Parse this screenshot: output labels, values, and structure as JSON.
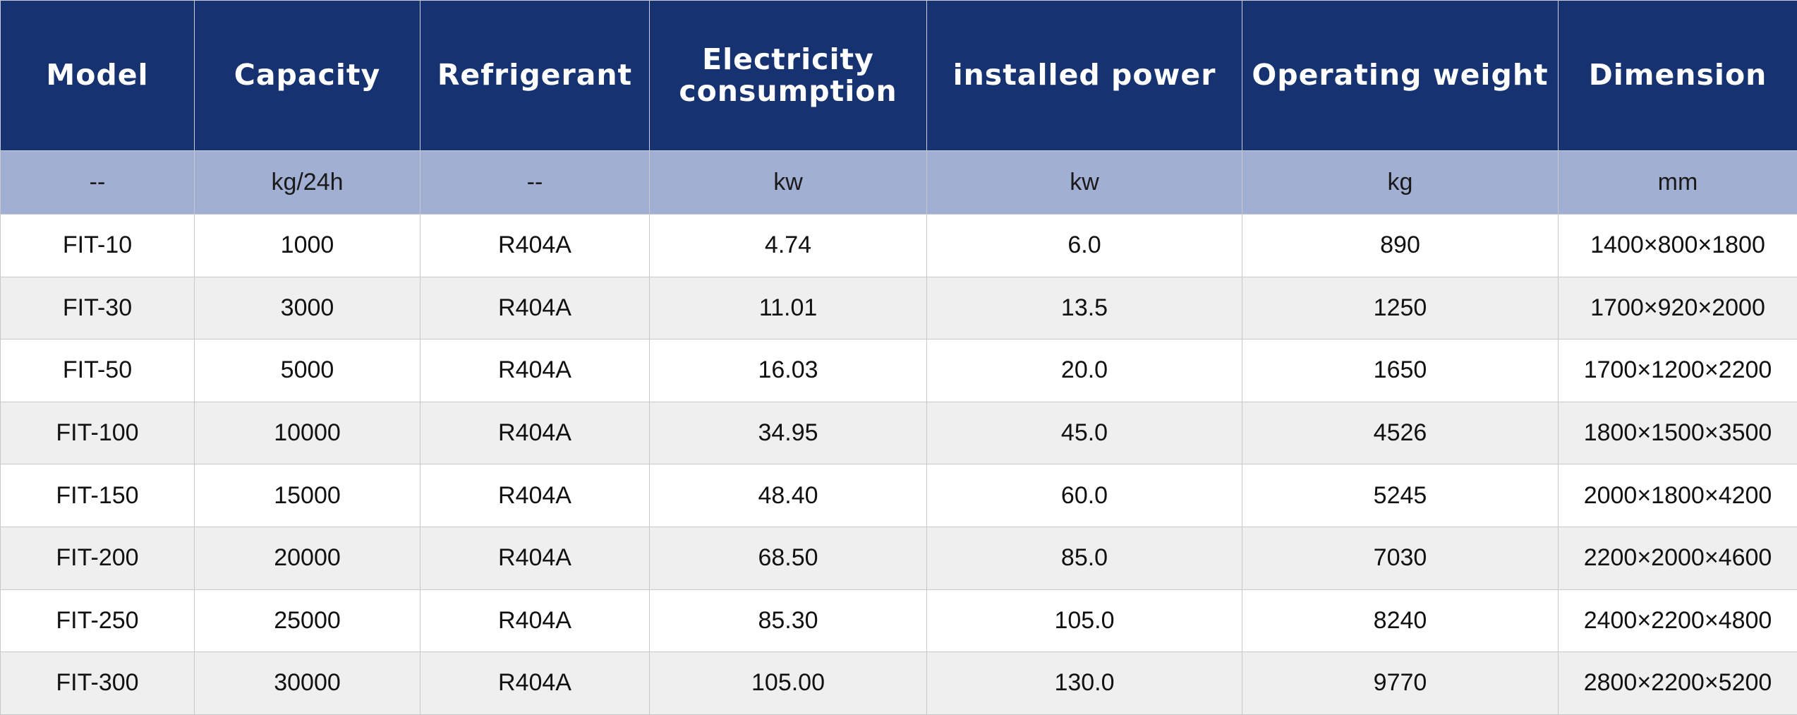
{
  "columns": [
    {
      "key": "model",
      "label": "Model",
      "unit": "--"
    },
    {
      "key": "capacity",
      "label": "Capacity",
      "unit": "kg/24h"
    },
    {
      "key": "refrigerant",
      "label": "Refrigerant",
      "unit": "--"
    },
    {
      "key": "electricity",
      "label_line1": "Electricity",
      "label_line2": "consumption",
      "unit": "kw"
    },
    {
      "key": "installed_power",
      "label": "installed power",
      "unit": "kw"
    },
    {
      "key": "operating_weight",
      "label": "Operating weight",
      "unit": "kg"
    },
    {
      "key": "dimension",
      "label": "Dimension",
      "unit": "mm"
    }
  ],
  "rows": [
    [
      "FIT-10",
      "1000",
      "R404A",
      "4.74",
      "6.0",
      "890",
      "1400×800×1800"
    ],
    [
      "FIT-30",
      "3000",
      "R404A",
      "11.01",
      "13.5",
      "1250",
      "1700×920×2000"
    ],
    [
      "FIT-50",
      "5000",
      "R404A",
      "16.03",
      "20.0",
      "1650",
      "1700×1200×2200"
    ],
    [
      "FIT-100",
      "10000",
      "R404A",
      "34.95",
      "45.0",
      "4526",
      "1800×1500×3500"
    ],
    [
      "FIT-150",
      "15000",
      "R404A",
      "48.40",
      "60.0",
      "5245",
      "2000×1800×4200"
    ],
    [
      "FIT-200",
      "20000",
      "R404A",
      "68.50",
      "85.0",
      "7030",
      "2200×2000×4600"
    ],
    [
      "FIT-250",
      "25000",
      "R404A",
      "85.30",
      "105.0",
      "8240",
      "2400×2200×4800"
    ],
    [
      "FIT-300",
      "30000",
      "R404A",
      "105.00",
      "130.0",
      "9770",
      "2800×2200×5200"
    ]
  ],
  "colors": {
    "header_bg": "#173270",
    "unit_row_bg": "#a1afd3",
    "stripe_bg": "#efefef",
    "grid_line": "#c8c8cc"
  }
}
